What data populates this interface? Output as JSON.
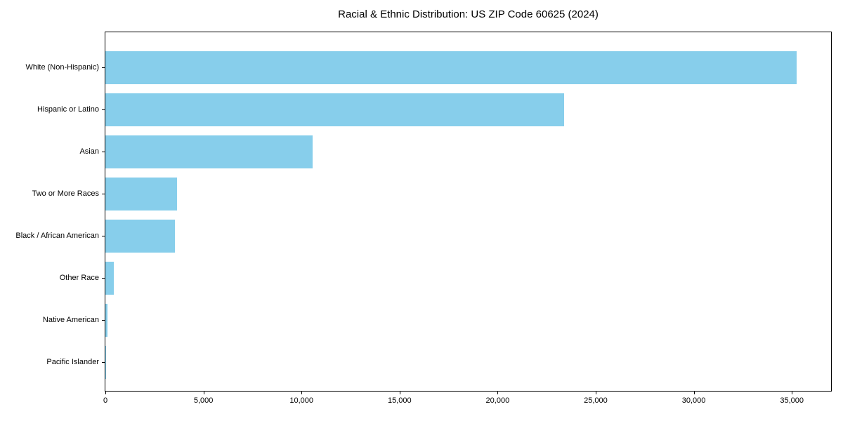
{
  "chart_data": {
    "type": "bar",
    "orientation": "horizontal",
    "title": "Racial & Ethnic Distribution: US ZIP Code 60625 (2024)",
    "xlabel": "",
    "ylabel": "",
    "categories": [
      "White (Non-Hispanic)",
      "Hispanic or Latino",
      "Asian",
      "Two or More Races",
      "Black / African American",
      "Other Race",
      "Native American",
      "Pacific Islander"
    ],
    "values": [
      35250,
      23400,
      10560,
      3640,
      3530,
      430,
      120,
      20
    ],
    "xlim": [
      0,
      37000
    ],
    "xticks": [
      0,
      5000,
      10000,
      15000,
      20000,
      25000,
      30000,
      35000
    ],
    "xtick_labels": [
      "0",
      "5,000",
      "10,000",
      "15,000",
      "20,000",
      "25,000",
      "30,000",
      "35,000"
    ],
    "bar_color": "#87CEEB",
    "grid": false,
    "legend": "none"
  }
}
